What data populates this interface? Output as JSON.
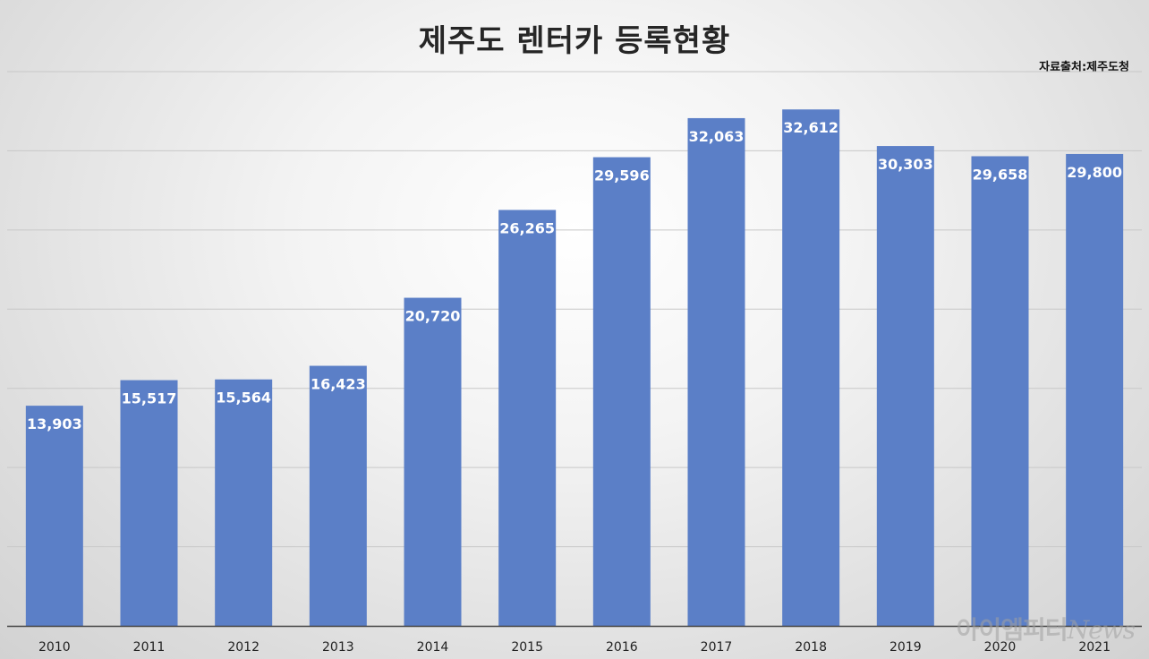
{
  "source_note": "자료출처:제주도청",
  "watermark": {
    "brand": "아이엠피터",
    "suffix": "News"
  },
  "colors": {
    "bar": "#5b7fc7",
    "grid": "#c8c8c8",
    "axis": "#444444"
  },
  "chart_data": {
    "type": "bar",
    "title": "제주도 렌터카 등록현황",
    "xlabel": "",
    "ylabel": "",
    "categories": [
      "2010",
      "2011",
      "2012",
      "2013",
      "2014",
      "2015",
      "2016",
      "2017",
      "2018",
      "2019",
      "2020",
      "2021"
    ],
    "values": [
      13903,
      15517,
      15564,
      16423,
      20720,
      26265,
      29596,
      32063,
      32612,
      30303,
      29658,
      29800
    ],
    "data_labels": [
      "13,903",
      "15,517",
      "15,564",
      "16,423",
      "20,720",
      "26,265",
      "29,596",
      "32,063",
      "32,612",
      "30,303",
      "29,658",
      "29,800"
    ],
    "ylim": [
      0,
      35000
    ],
    "grid": true,
    "legend": "none"
  }
}
